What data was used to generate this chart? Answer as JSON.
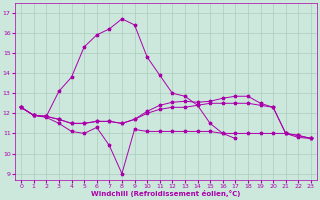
{
  "xlabel": "Windchill (Refroidissement éolien,°C)",
  "background_color": "#cce8dd",
  "grid_color": "#aaccbb",
  "line_color": "#aa00aa",
  "x_ticks": [
    0,
    1,
    2,
    3,
    4,
    5,
    6,
    7,
    8,
    9,
    10,
    11,
    12,
    13,
    14,
    15,
    16,
    17,
    18,
    19,
    20,
    21,
    22,
    23
  ],
  "ylim": [
    8.7,
    17.5
  ],
  "y_ticks": [
    9,
    10,
    11,
    12,
    13,
    14,
    15,
    16,
    17
  ],
  "curve1_x": [
    0,
    1,
    2,
    3,
    4,
    5,
    6,
    7,
    8,
    9,
    10,
    11,
    12,
    13,
    14,
    15,
    16,
    17,
    18,
    19,
    20,
    21,
    22,
    23
  ],
  "curve1_y": [
    12.3,
    11.9,
    11.8,
    11.5,
    11.1,
    11.0,
    11.3,
    10.4,
    9.0,
    11.2,
    11.1,
    11.1,
    11.1,
    11.1,
    11.1,
    11.1,
    11.0,
    11.0,
    11.0,
    11.0,
    11.0,
    11.0,
    10.8,
    10.75
  ],
  "curve2_x": [
    0,
    1,
    2,
    3,
    4,
    5,
    6,
    7,
    8,
    9,
    10,
    11,
    12,
    13,
    14,
    15,
    16,
    17,
    18,
    19,
    20,
    21,
    22,
    23
  ],
  "curve2_y": [
    12.3,
    11.9,
    11.85,
    11.7,
    11.5,
    11.5,
    11.6,
    11.6,
    11.5,
    11.7,
    12.0,
    12.2,
    12.3,
    12.3,
    12.4,
    12.5,
    12.5,
    12.5,
    12.5,
    12.4,
    12.3,
    11.0,
    10.9,
    10.75
  ],
  "curve3_x": [
    0,
    1,
    2,
    3,
    4,
    5,
    6,
    7,
    8,
    9,
    10,
    11,
    12,
    13,
    14,
    15,
    16,
    17,
    18,
    19,
    20,
    21,
    22,
    23
  ],
  "curve3_y": [
    12.3,
    11.9,
    11.85,
    11.7,
    11.5,
    11.5,
    11.6,
    11.6,
    11.5,
    11.7,
    12.1,
    12.4,
    12.55,
    12.6,
    12.55,
    12.6,
    12.75,
    12.85,
    12.85,
    12.5,
    12.3,
    11.0,
    10.9,
    10.75
  ],
  "curve4_x": [
    0,
    1,
    2,
    3,
    4,
    5,
    6,
    7,
    8,
    9,
    10,
    11,
    12,
    13,
    14,
    15,
    16,
    17,
    18,
    19,
    20,
    21,
    22
  ],
  "curve4_y": [
    12.3,
    11.9,
    11.85,
    13.1,
    13.8,
    15.3,
    15.9,
    16.2,
    16.7,
    16.4,
    14.8,
    13.9,
    13.0,
    12.85,
    12.4,
    11.5,
    11.0,
    10.75,
    null,
    null,
    null,
    null,
    null
  ]
}
